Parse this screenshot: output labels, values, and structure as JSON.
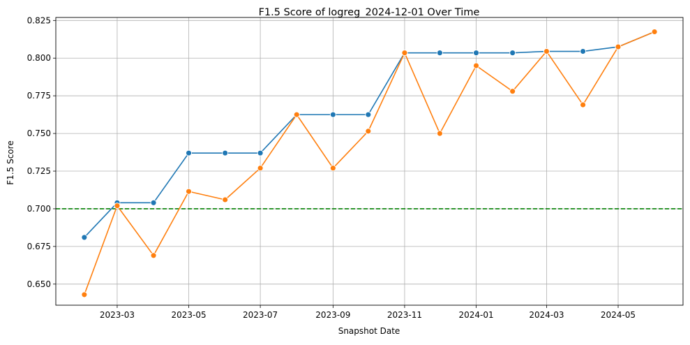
{
  "chart_data": {
    "type": "line",
    "title": "F1.5 Score of logreg_2024-12-01 Over Time",
    "xlabel": "Snapshot Date",
    "ylabel": "F1.5 Score",
    "x": [
      "2023-02-01",
      "2023-03-01",
      "2023-04-01",
      "2023-05-01",
      "2023-06-01",
      "2023-07-01",
      "2023-08-01",
      "2023-09-01",
      "2023-10-01",
      "2023-11-01",
      "2023-12-01",
      "2024-01-01",
      "2024-02-01",
      "2024-03-01",
      "2024-04-01",
      "2024-05-01",
      "2024-06-01"
    ],
    "x_ticks": [
      "2023-03",
      "2023-05",
      "2023-07",
      "2023-09",
      "2023-11",
      "2024-01",
      "2024-03",
      "2024-05"
    ],
    "y_ticks": [
      "0.650",
      "0.675",
      "0.700",
      "0.725",
      "0.750",
      "0.775",
      "0.800",
      "0.825"
    ],
    "ylim": [
      0.636,
      0.827
    ],
    "grid": true,
    "threshold": {
      "value": 0.7,
      "color": "#008000",
      "style": "dashed"
    },
    "series": [
      {
        "color": "#1f77b4",
        "values": [
          0.681,
          0.704,
          0.704,
          0.737,
          0.737,
          0.737,
          0.7625,
          0.7625,
          0.7625,
          0.8035,
          0.8035,
          0.8035,
          0.8035,
          0.8045,
          0.8045,
          0.8075,
          0.8175
        ]
      },
      {
        "color": "#ff7f0e",
        "values": [
          0.643,
          0.702,
          0.669,
          0.7115,
          0.706,
          0.727,
          0.7625,
          0.727,
          0.7515,
          0.8035,
          0.75,
          0.795,
          0.778,
          0.8045,
          0.769,
          0.8075,
          0.8175
        ]
      }
    ]
  }
}
